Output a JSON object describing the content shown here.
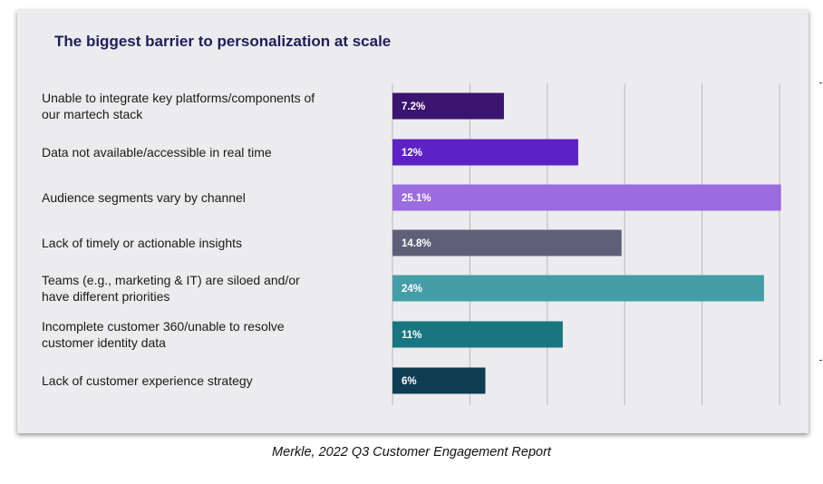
{
  "chart_data": {
    "type": "bar",
    "orientation": "horizontal",
    "title": "The biggest barrier to personalization at scale",
    "categories": [
      "Unable to integrate key platforms/components of our martech stack",
      "Data not available/accessible in real time",
      "Audience segments vary by channel",
      "Lack of timely or actionable insights",
      "Teams (e.g., marketing & IT) are siloed and/or have different priorities",
      "Incomplete customer 360/unable to resolve customer identity data",
      "Lack of customer experience strategy"
    ],
    "label_lines": [
      [
        "Unable to integrate key platforms/components of",
        "our martech stack"
      ],
      [
        "Data not available/accessible in real time"
      ],
      [
        "Audience segments vary by channel"
      ],
      [
        "Lack of timely or actionable insights"
      ],
      [
        "Teams (e.g., marketing & IT) are siloed and/or",
        "have different priorities"
      ],
      [
        "Incomplete customer 360/unable to resolve",
        "customer identity data"
      ],
      [
        "Lack of customer experience strategy"
      ]
    ],
    "values": [
      7.2,
      12,
      25.1,
      14.8,
      24,
      11,
      6
    ],
    "value_labels": [
      "7.2%",
      "12%",
      "25.1%",
      "14.8%",
      "24%",
      "11%",
      "6%"
    ],
    "colors": [
      "#3b1470",
      "#5d22c6",
      "#9b6be0",
      "#5f5f7a",
      "#449ea7",
      "#187680",
      "#0f3d52"
    ],
    "xlim": [
      0,
      25
    ],
    "grid": true,
    "legend": "none",
    "xlabel": "",
    "ylabel": ""
  },
  "caption": "Merkle, 2022 Q3 Customer Engagement Report"
}
